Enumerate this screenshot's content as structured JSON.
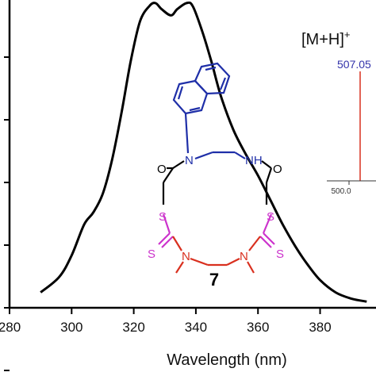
{
  "chart_data": {
    "type": "line",
    "xlabel": "Wavelength (nm)",
    "ylabel": "",
    "xlim": [
      280,
      398
    ],
    "ylim": [
      0,
      1.0
    ],
    "x_ticks": [
      280,
      300,
      320,
      340,
      360,
      380
    ],
    "x_tick_labels": [
      "280",
      "300",
      "320",
      "340",
      "360",
      "380"
    ],
    "y_tick_count": 6,
    "grid": false,
    "series": [
      {
        "color": "#000000",
        "x": [
          290,
          296,
          300,
          304,
          307,
          310,
          313,
          316,
          319,
          322,
          325,
          327,
          329,
          332,
          334,
          337,
          339,
          342,
          345,
          348,
          352,
          356,
          360,
          364,
          368,
          372,
          376,
          380,
          385,
          390,
          395
        ],
        "y": [
          0.05,
          0.1,
          0.17,
          0.27,
          0.31,
          0.37,
          0.48,
          0.63,
          0.8,
          0.93,
          0.98,
          0.99,
          0.97,
          0.95,
          0.97,
          0.99,
          0.98,
          0.9,
          0.8,
          0.69,
          0.58,
          0.5,
          0.43,
          0.35,
          0.27,
          0.2,
          0.14,
          0.09,
          0.05,
          0.03,
          0.02
        ]
      }
    ]
  },
  "inset_ms": {
    "ion_label": "[M+H]",
    "ion_charge": "+",
    "peak_label": "507.05",
    "axis_tick_label": "500.0",
    "peak_color": "#3333aa"
  },
  "structure": {
    "compound_number": "7",
    "atom_labels": {
      "n_naph": "N",
      "nh": "NH",
      "o_left": "O",
      "o_right": "O",
      "s_left": "S",
      "s_right": "S",
      "s_thione_left": "S",
      "s_thione_right": "S",
      "n_me_left": "N",
      "n_me_right": "N"
    },
    "colors": {
      "naphthyl": "#1f2fa8",
      "backbone": "#000000",
      "dithiocarbamate": "#cc33cc",
      "diamine": "#d9301f"
    }
  }
}
